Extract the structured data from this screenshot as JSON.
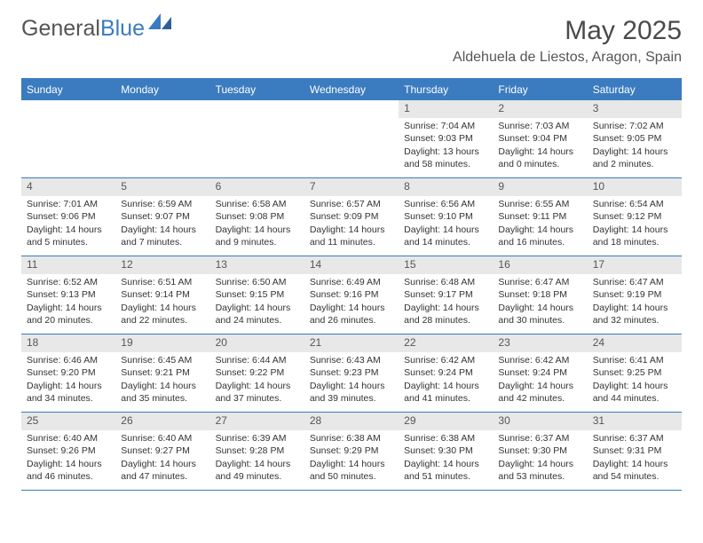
{
  "logo": {
    "text1": "General",
    "text2": "Blue"
  },
  "title": "May 2025",
  "location": "Aldehuela de Liestos, Aragon, Spain",
  "colors": {
    "header_bg": "#3b7bbf",
    "header_text": "#ffffff",
    "daynum_bg": "#e8e8e8",
    "border": "#3b7bbf",
    "body_text": "#333333"
  },
  "weekdays": [
    "Sunday",
    "Monday",
    "Tuesday",
    "Wednesday",
    "Thursday",
    "Friday",
    "Saturday"
  ],
  "leading_blanks": 4,
  "days": [
    {
      "n": 1,
      "sunrise": "7:04 AM",
      "sunset": "9:03 PM",
      "dl": "13 hours and 58 minutes."
    },
    {
      "n": 2,
      "sunrise": "7:03 AM",
      "sunset": "9:04 PM",
      "dl": "14 hours and 0 minutes."
    },
    {
      "n": 3,
      "sunrise": "7:02 AM",
      "sunset": "9:05 PM",
      "dl": "14 hours and 2 minutes."
    },
    {
      "n": 4,
      "sunrise": "7:01 AM",
      "sunset": "9:06 PM",
      "dl": "14 hours and 5 minutes."
    },
    {
      "n": 5,
      "sunrise": "6:59 AM",
      "sunset": "9:07 PM",
      "dl": "14 hours and 7 minutes."
    },
    {
      "n": 6,
      "sunrise": "6:58 AM",
      "sunset": "9:08 PM",
      "dl": "14 hours and 9 minutes."
    },
    {
      "n": 7,
      "sunrise": "6:57 AM",
      "sunset": "9:09 PM",
      "dl": "14 hours and 11 minutes."
    },
    {
      "n": 8,
      "sunrise": "6:56 AM",
      "sunset": "9:10 PM",
      "dl": "14 hours and 14 minutes."
    },
    {
      "n": 9,
      "sunrise": "6:55 AM",
      "sunset": "9:11 PM",
      "dl": "14 hours and 16 minutes."
    },
    {
      "n": 10,
      "sunrise": "6:54 AM",
      "sunset": "9:12 PM",
      "dl": "14 hours and 18 minutes."
    },
    {
      "n": 11,
      "sunrise": "6:52 AM",
      "sunset": "9:13 PM",
      "dl": "14 hours and 20 minutes."
    },
    {
      "n": 12,
      "sunrise": "6:51 AM",
      "sunset": "9:14 PM",
      "dl": "14 hours and 22 minutes."
    },
    {
      "n": 13,
      "sunrise": "6:50 AM",
      "sunset": "9:15 PM",
      "dl": "14 hours and 24 minutes."
    },
    {
      "n": 14,
      "sunrise": "6:49 AM",
      "sunset": "9:16 PM",
      "dl": "14 hours and 26 minutes."
    },
    {
      "n": 15,
      "sunrise": "6:48 AM",
      "sunset": "9:17 PM",
      "dl": "14 hours and 28 minutes."
    },
    {
      "n": 16,
      "sunrise": "6:47 AM",
      "sunset": "9:18 PM",
      "dl": "14 hours and 30 minutes."
    },
    {
      "n": 17,
      "sunrise": "6:47 AM",
      "sunset": "9:19 PM",
      "dl": "14 hours and 32 minutes."
    },
    {
      "n": 18,
      "sunrise": "6:46 AM",
      "sunset": "9:20 PM",
      "dl": "14 hours and 34 minutes."
    },
    {
      "n": 19,
      "sunrise": "6:45 AM",
      "sunset": "9:21 PM",
      "dl": "14 hours and 35 minutes."
    },
    {
      "n": 20,
      "sunrise": "6:44 AM",
      "sunset": "9:22 PM",
      "dl": "14 hours and 37 minutes."
    },
    {
      "n": 21,
      "sunrise": "6:43 AM",
      "sunset": "9:23 PM",
      "dl": "14 hours and 39 minutes."
    },
    {
      "n": 22,
      "sunrise": "6:42 AM",
      "sunset": "9:24 PM",
      "dl": "14 hours and 41 minutes."
    },
    {
      "n": 23,
      "sunrise": "6:42 AM",
      "sunset": "9:24 PM",
      "dl": "14 hours and 42 minutes."
    },
    {
      "n": 24,
      "sunrise": "6:41 AM",
      "sunset": "9:25 PM",
      "dl": "14 hours and 44 minutes."
    },
    {
      "n": 25,
      "sunrise": "6:40 AM",
      "sunset": "9:26 PM",
      "dl": "14 hours and 46 minutes."
    },
    {
      "n": 26,
      "sunrise": "6:40 AM",
      "sunset": "9:27 PM",
      "dl": "14 hours and 47 minutes."
    },
    {
      "n": 27,
      "sunrise": "6:39 AM",
      "sunset": "9:28 PM",
      "dl": "14 hours and 49 minutes."
    },
    {
      "n": 28,
      "sunrise": "6:38 AM",
      "sunset": "9:29 PM",
      "dl": "14 hours and 50 minutes."
    },
    {
      "n": 29,
      "sunrise": "6:38 AM",
      "sunset": "9:30 PM",
      "dl": "14 hours and 51 minutes."
    },
    {
      "n": 30,
      "sunrise": "6:37 AM",
      "sunset": "9:30 PM",
      "dl": "14 hours and 53 minutes."
    },
    {
      "n": 31,
      "sunrise": "6:37 AM",
      "sunset": "9:31 PM",
      "dl": "14 hours and 54 minutes."
    }
  ],
  "labels": {
    "sunrise": "Sunrise: ",
    "sunset": "Sunset: ",
    "daylight": "Daylight: "
  }
}
